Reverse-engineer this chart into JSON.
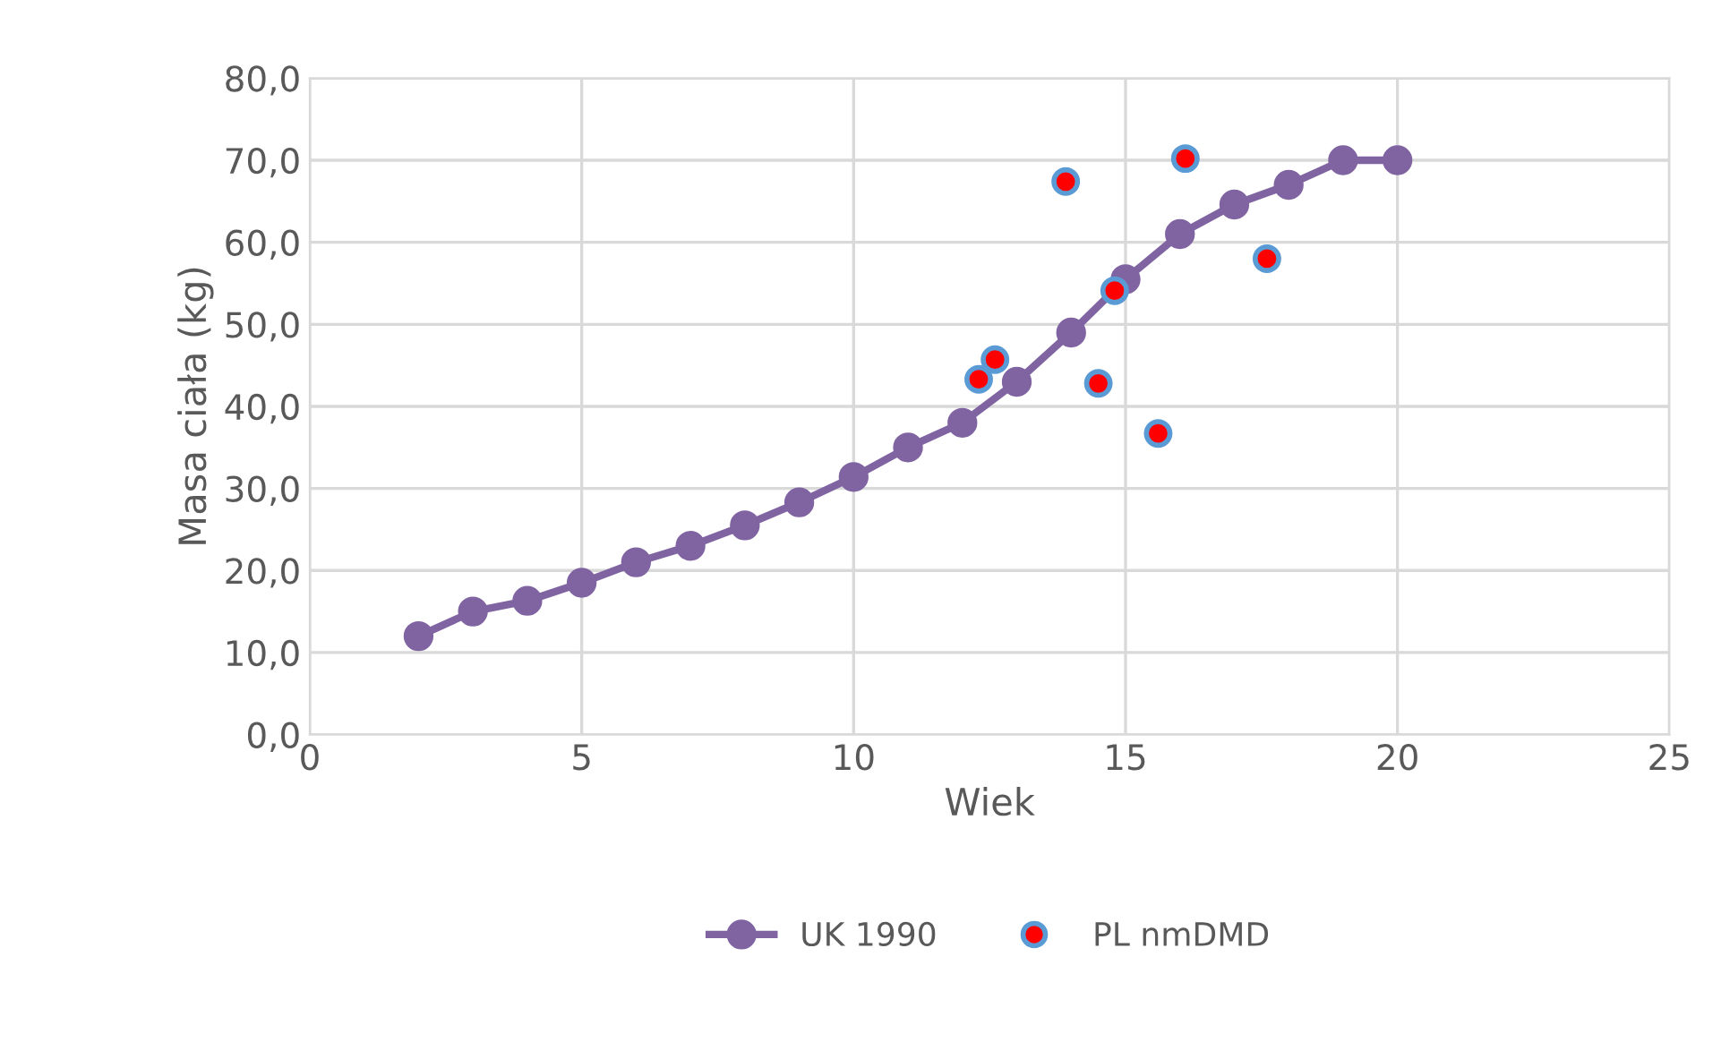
{
  "chart_data": {
    "type": "line",
    "xlabel": "Wiek",
    "ylabel": "Masa ciała (kg)",
    "xlim": [
      0,
      25
    ],
    "xticks": [
      0,
      5,
      10,
      15,
      20,
      25
    ],
    "ylim": [
      0,
      80
    ],
    "yticks": [
      {
        "value": 0,
        "label": "0,0"
      },
      {
        "value": 10,
        "label": "10,0"
      },
      {
        "value": 20,
        "label": "20,0"
      },
      {
        "value": 30,
        "label": "30,0"
      },
      {
        "value": 40,
        "label": "40,0"
      },
      {
        "value": 50,
        "label": "50,0"
      },
      {
        "value": 60,
        "label": "60,0"
      },
      {
        "value": 70,
        "label": "70,0"
      },
      {
        "value": 80,
        "label": "80,0"
      }
    ],
    "grid": true,
    "legend": "bottom",
    "marker": "circle",
    "series": [
      {
        "name": "UK 1990",
        "color": "#8064a2",
        "x": [
          2,
          3,
          4,
          5,
          6,
          7,
          8,
          9,
          10,
          11,
          12,
          13,
          14,
          15,
          16,
          17,
          18,
          19,
          20
        ],
        "values": [
          12,
          15,
          16.3,
          18.5,
          21,
          23,
          25.5,
          28.3,
          31.4,
          35,
          38,
          43,
          49,
          55.5,
          61,
          64.6,
          67,
          70,
          70
        ]
      },
      {
        "name": "PL nmDMD",
        "type": "scatter",
        "color": "#ff0000",
        "x": [
          12.3,
          12.6,
          13.9,
          14.5,
          14.8,
          15.6,
          16.1,
          17.6
        ],
        "values": [
          43.3,
          45.7,
          67.4,
          42.8,
          54.1,
          36.7,
          70.2,
          58.0
        ]
      }
    ]
  }
}
